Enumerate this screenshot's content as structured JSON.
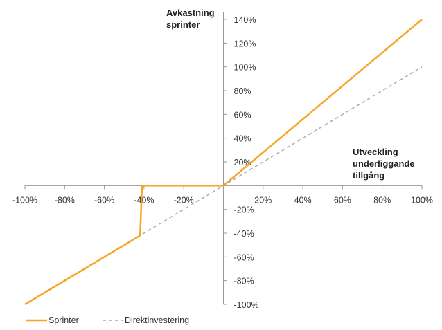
{
  "chart_data": {
    "type": "line",
    "ylabel": [
      "Avkastning",
      "sprinter"
    ],
    "xlabel": [
      "Utveckling",
      "underliggande",
      "tillgång"
    ],
    "xlim": [
      -100,
      100
    ],
    "ylim": [
      -100,
      140
    ],
    "x_ticks": [
      -100,
      -80,
      -60,
      -40,
      -20,
      0,
      20,
      40,
      60,
      80,
      100
    ],
    "y_ticks": [
      -100,
      -80,
      -60,
      -40,
      -20,
      0,
      20,
      40,
      60,
      80,
      100,
      120,
      140
    ],
    "x_tick_labels": [
      "-100%",
      "-80%",
      "-60%",
      "-40%",
      "-20%",
      "20%",
      "40%",
      "60%",
      "80%",
      "100%"
    ],
    "y_tick_labels": [
      "-100%",
      "-80%",
      "-60%",
      "-40%",
      "-20%",
      "20%",
      "40%",
      "60%",
      "80%",
      "100%",
      "120%",
      "140%"
    ],
    "grid": false,
    "legend_position": "bottom-left",
    "series": [
      {
        "name": "Sprinter",
        "color": "#f5a623",
        "style": "solid",
        "points": [
          [
            -100,
            -100
          ],
          [
            -42,
            -42
          ],
          [
            -41,
            0
          ],
          [
            0,
            0
          ],
          [
            100,
            140
          ]
        ]
      },
      {
        "name": "Direktinvestering",
        "color": "#a9a9a9",
        "style": "dashed",
        "points": [
          [
            -100,
            -100
          ],
          [
            100,
            100
          ]
        ]
      }
    ]
  }
}
